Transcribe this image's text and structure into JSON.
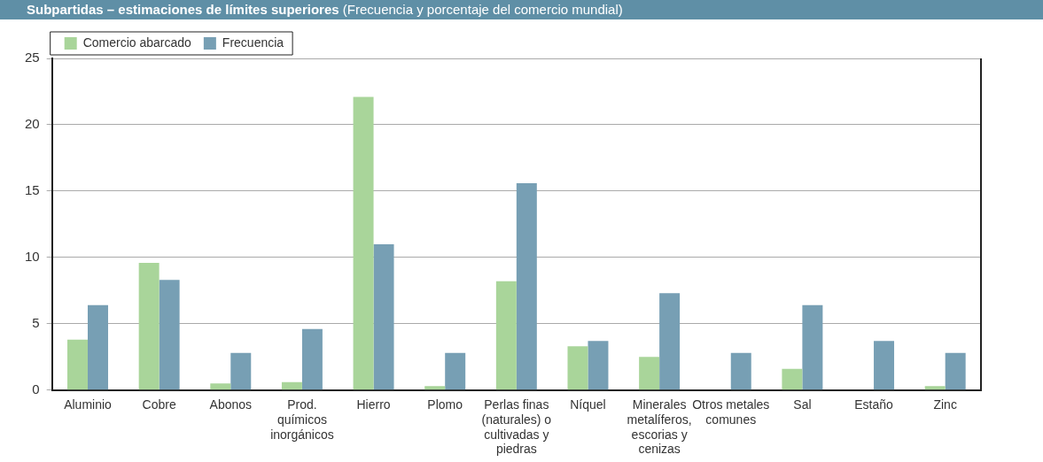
{
  "chart_data": {
    "type": "bar",
    "title": "Subpartidas – estimaciones de límites superiores",
    "subtitle": "(Frecuencia y porcentaje del comercio mundial)",
    "categories": [
      "Aluminio",
      "Cobre",
      "Abonos",
      "Prod. químicos inorgánicos",
      "Hierro",
      "Plomo",
      "Perlas finas (naturales) o cultivadas y piedras",
      "Níquel",
      "Minerales metalíferos, escorias y cenizas",
      "Otros metales comunes",
      "Sal",
      "Estaño",
      "Zinc"
    ],
    "series": [
      {
        "name": "Comercio abarcado",
        "color": "#a9d59a",
        "values": [
          3.8,
          9.6,
          0.5,
          0.6,
          22.1,
          0.3,
          8.2,
          3.3,
          2.5,
          0,
          1.6,
          0,
          0.3
        ]
      },
      {
        "name": "Frecuencia",
        "color": "#779fb4",
        "values": [
          6.4,
          8.3,
          2.8,
          4.6,
          11.0,
          2.8,
          15.6,
          3.7,
          7.3,
          2.8,
          6.4,
          3.7,
          2.8
        ]
      }
    ],
    "ylim": [
      0,
      25
    ],
    "yticks": [
      0,
      5,
      10,
      15,
      20,
      25
    ],
    "grid": "y",
    "legend": "top left"
  }
}
